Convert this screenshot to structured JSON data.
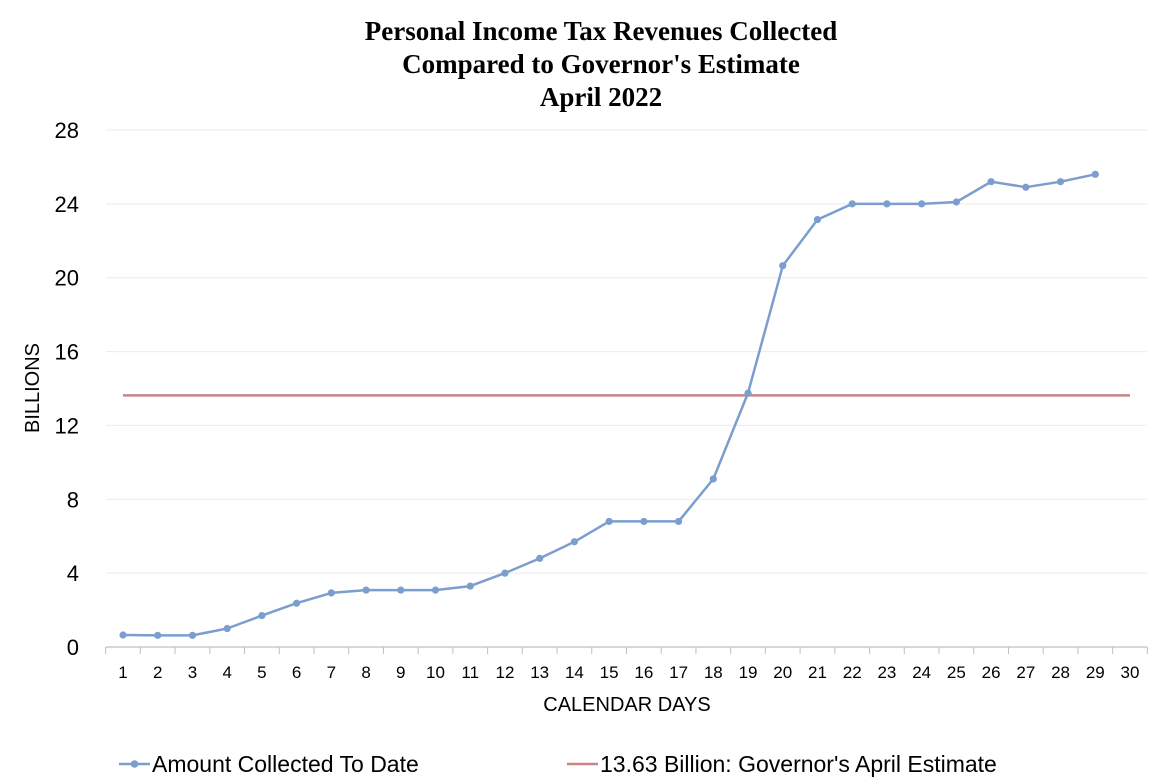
{
  "chart_data": {
    "type": "line",
    "title_lines": [
      "Personal Income Tax Revenues Collected",
      "Compared to Governor's Estimate",
      "April 2022"
    ],
    "xlabel": "CALENDAR DAYS",
    "ylabel": "BILLIONS",
    "x": [
      1,
      2,
      3,
      4,
      5,
      6,
      7,
      8,
      9,
      10,
      11,
      12,
      13,
      14,
      15,
      16,
      17,
      18,
      19,
      20,
      21,
      22,
      23,
      24,
      25,
      26,
      27,
      28,
      29,
      30
    ],
    "xlim": [
      1,
      30
    ],
    "ylim": [
      0,
      28
    ],
    "yticks": [
      0,
      4,
      8,
      12,
      16,
      20,
      24,
      28
    ],
    "grid": "horizontal",
    "legend_position": "bottom",
    "series": [
      {
        "name": "Amount Collected To Date",
        "kind": "line-markers",
        "color": "#7b9ecf",
        "x": [
          1,
          2,
          3,
          4,
          5,
          6,
          7,
          8,
          9,
          10,
          11,
          12,
          13,
          14,
          15,
          16,
          17,
          18,
          19,
          20,
          21,
          22,
          23,
          24,
          25,
          26,
          27,
          28,
          29
        ],
        "values": [
          0.65,
          0.63,
          0.63,
          1.0,
          1.7,
          2.37,
          2.93,
          3.08,
          3.08,
          3.08,
          3.3,
          4.0,
          4.8,
          5.7,
          6.8,
          6.8,
          6.8,
          9.1,
          13.75,
          20.65,
          23.15,
          24.0,
          24.0,
          24.0,
          24.1,
          25.2,
          24.9,
          25.2,
          25.6
        ]
      },
      {
        "name": "13.63 Billion: Governor's April Estimate",
        "kind": "reference-line",
        "color": "#c98584",
        "value": 13.63
      }
    ]
  }
}
